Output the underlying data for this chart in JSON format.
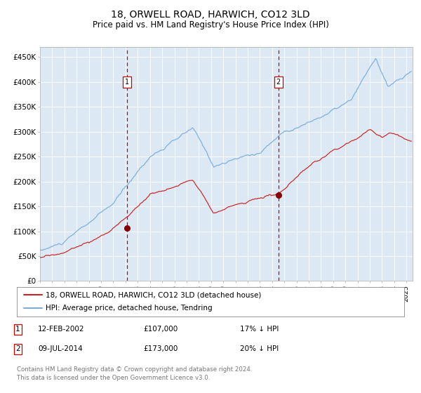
{
  "title": "18, ORWELL ROAD, HARWICH, CO12 3LD",
  "subtitle": "Price paid vs. HM Land Registry's House Price Index (HPI)",
  "title_fontsize": 10,
  "subtitle_fontsize": 8.5,
  "background_color": "#ffffff",
  "plot_bg_color": "#dce9f5",
  "ylim": [
    0,
    470000
  ],
  "yticks": [
    0,
    50000,
    100000,
    150000,
    200000,
    250000,
    300000,
    350000,
    400000,
    450000
  ],
  "xlim_start": 1995.0,
  "xlim_end": 2025.5,
  "purchase1_date": 2002.12,
  "purchase1_price": 107000,
  "purchase2_date": 2014.52,
  "purchase2_price": 173000,
  "vline_color": "#cc0000",
  "marker_color": "#880000",
  "hpi_line_color": "#7aadde",
  "price_line_color": "#cc2222",
  "legend_label_price": "18, ORWELL ROAD, HARWICH, CO12 3LD (detached house)",
  "legend_label_hpi": "HPI: Average price, detached house, Tendring",
  "footnote": "Contains HM Land Registry data © Crown copyright and database right 2024.\nThis data is licensed under the Open Government Licence v3.0.",
  "table_rows": [
    {
      "num": "1",
      "date": "12-FEB-2002",
      "price": "£107,000",
      "pct": "17% ↓ HPI"
    },
    {
      "num": "2",
      "date": "09-JUL-2014",
      "price": "£173,000",
      "pct": "20% ↓ HPI"
    }
  ]
}
